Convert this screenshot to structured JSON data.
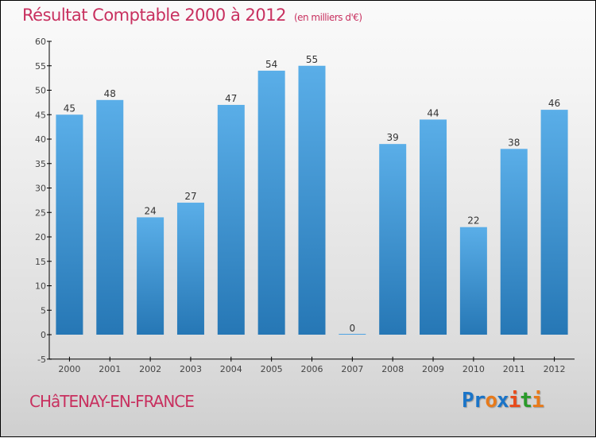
{
  "chart_data": {
    "type": "bar",
    "title": "Résultat Comptable 2000 à 2012",
    "subtitle": "(en milliers d'€)",
    "categories": [
      "2000",
      "2001",
      "2002",
      "2003",
      "2004",
      "2005",
      "2006",
      "2007",
      "2008",
      "2009",
      "2010",
      "2011",
      "2012"
    ],
    "values": [
      45,
      48,
      24,
      27,
      47,
      54,
      55,
      0,
      39,
      44,
      22,
      38,
      46
    ],
    "ylim": [
      -5,
      60
    ],
    "yticks": [
      -5,
      0,
      5,
      10,
      15,
      20,
      25,
      30,
      35,
      40,
      45,
      50,
      55,
      60
    ],
    "xlabel": "",
    "ylabel": "",
    "bar_color": "#4fa3e3"
  },
  "footer": {
    "city": "CHâTENAY-EN-FRANCE",
    "logo": [
      "P",
      "r",
      "o",
      "x",
      "i",
      "t",
      "i"
    ],
    "logo_colors": [
      "#1a74c8",
      "#1a74c8",
      "#e87a1a",
      "#1a74c8",
      "#e84a1a",
      "#2a9a2a",
      "#e87a1a"
    ]
  }
}
